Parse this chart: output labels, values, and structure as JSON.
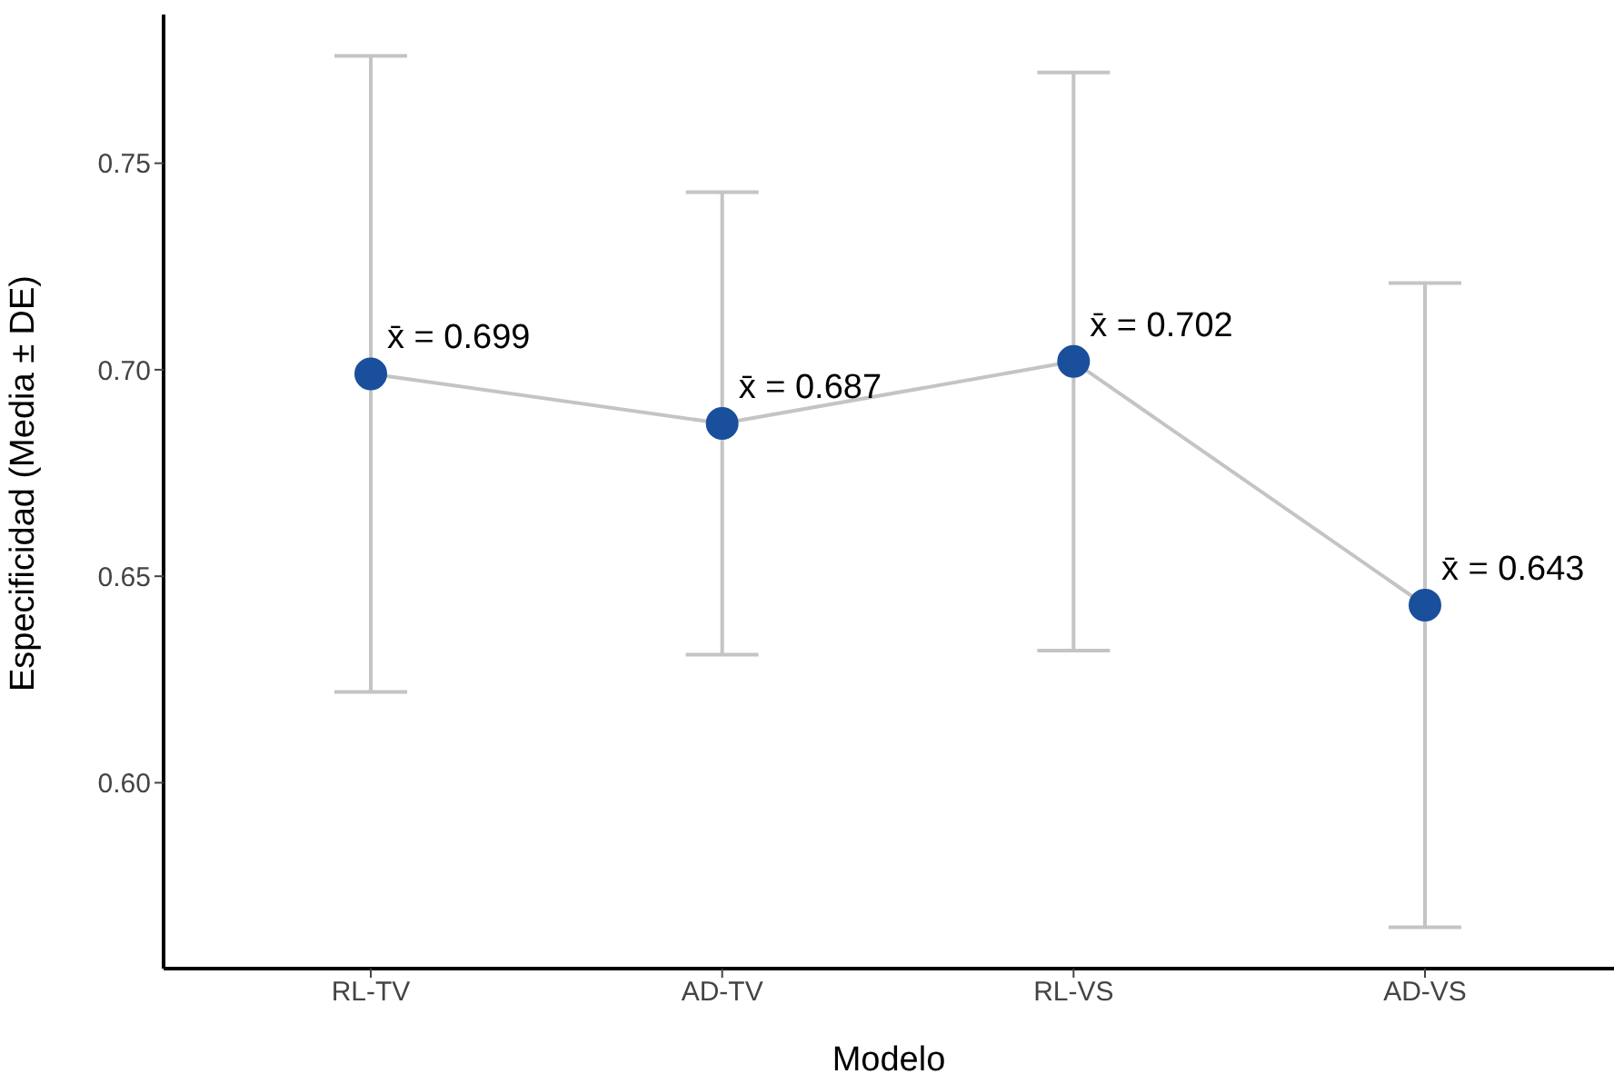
{
  "chart_data": {
    "type": "line",
    "xlabel": "Modelo",
    "ylabel": "Especificidad (Media ± DE)",
    "categories": [
      "RL-TV",
      "AD-TV",
      "RL-VS",
      "AD-VS"
    ],
    "series": [
      {
        "color": "#1a4f9c",
        "values": [
          0.699,
          0.687,
          0.702,
          0.643
        ],
        "errors": [
          0.077,
          0.056,
          0.07,
          0.078
        ],
        "value_labels": [
          "x̄ = 0.699",
          "x̄ = 0.687",
          "x̄ = 0.702",
          "x̄ = 0.643"
        ]
      }
    ],
    "ylim": [
      0.555,
      0.786
    ],
    "yticks": [
      {
        "value": 0.6,
        "label": "0.60"
      },
      {
        "value": 0.65,
        "label": "0.65"
      },
      {
        "value": 0.7,
        "label": "0.70"
      },
      {
        "value": 0.75,
        "label": "0.75"
      }
    ],
    "grid": false,
    "legend": false,
    "marker": "circle",
    "line_style": "solid"
  }
}
